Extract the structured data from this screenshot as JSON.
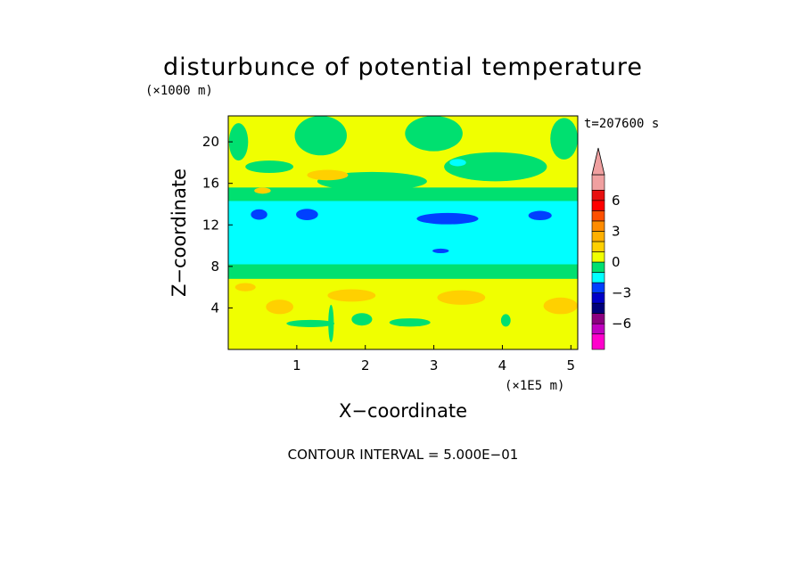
{
  "chart_data": {
    "type": "heatmap",
    "title": "disturbunce of potential temperature",
    "z_unit_label": "(×1000 m)",
    "x_unit_label": "(×1E5 m)",
    "xlabel": "X−coordinate",
    "ylabel": "Z−coordinate",
    "time_label": "t=207600 s",
    "footer": "CONTOUR INTERVAL = 5.000E−01",
    "xlim": [
      0,
      5.1
    ],
    "ylim": [
      0,
      22.5
    ],
    "x_ticks": [
      {
        "value": 1,
        "label": "1"
      },
      {
        "value": 2,
        "label": "2"
      },
      {
        "value": 3,
        "label": "3"
      },
      {
        "value": 4,
        "label": "4"
      },
      {
        "value": 5,
        "label": "5"
      }
    ],
    "y_ticks": [
      {
        "value": 4,
        "label": "4"
      },
      {
        "value": 8,
        "label": "8"
      },
      {
        "value": 12,
        "label": "12"
      },
      {
        "value": 16,
        "label": "16"
      },
      {
        "value": 20,
        "label": "20"
      }
    ],
    "colorbar": {
      "levels": [
        -8.5,
        -7,
        -6,
        -5,
        -4,
        -3,
        -2,
        -1,
        0,
        1,
        2,
        3,
        4,
        5,
        6,
        7,
        8.5
      ],
      "colors": [
        "#ff00cc",
        "#c000c0",
        "#8c0080",
        "#00007a",
        "#0000c8",
        "#0040ff",
        "#00ffff",
        "#00e070",
        "#f0ff00",
        "#ffd000",
        "#ffb000",
        "#ff8c00",
        "#ff5000",
        "#ff0000",
        "#e81010",
        "#f0a0a0"
      ],
      "tick_labels": [
        {
          "value": 6,
          "label": "6"
        },
        {
          "value": 3,
          "label": "3"
        },
        {
          "value": 0,
          "label": "0"
        },
        {
          "value": -3,
          "label": "−3"
        },
        {
          "value": -6,
          "label": "−6"
        }
      ],
      "extend": "max"
    },
    "field_regions": [
      {
        "level": 0.25,
        "color": "#f0ff00",
        "shape": "background",
        "x": [
          0,
          5.1
        ],
        "z": [
          0,
          22.5
        ]
      },
      {
        "level": -0.75,
        "color": "#00e070",
        "shape": "band",
        "x": [
          0,
          5.1
        ],
        "z": [
          6.8,
          15.6
        ]
      },
      {
        "level": -1.25,
        "color": "#00ffff",
        "shape": "band",
        "x": [
          0,
          5.1
        ],
        "z": [
          8.2,
          14.3
        ]
      },
      {
        "level": -2.25,
        "color": "#0040ff",
        "shape": "blob",
        "cx": 0.45,
        "cz": 13.0,
        "rx": 0.12,
        "rz": 0.5
      },
      {
        "level": -2.25,
        "color": "#0040ff",
        "shape": "blob",
        "cx": 1.15,
        "cz": 13.0,
        "rx": 0.16,
        "rz": 0.55
      },
      {
        "level": -2.25,
        "color": "#0040ff",
        "shape": "blob",
        "cx": 3.2,
        "cz": 12.6,
        "rx": 0.45,
        "rz": 0.55
      },
      {
        "level": -2.25,
        "color": "#0040ff",
        "shape": "blob",
        "cx": 4.55,
        "cz": 12.9,
        "rx": 0.17,
        "rz": 0.45
      },
      {
        "level": -2.25,
        "color": "#0040ff",
        "shape": "blob",
        "cx": 3.1,
        "cz": 9.5,
        "rx": 0.12,
        "rz": 0.22
      },
      {
        "level": -0.75,
        "color": "#00e070",
        "shape": "blob",
        "cx": 1.35,
        "cz": 20.6,
        "rx": 0.38,
        "rz": 1.9
      },
      {
        "level": -0.75,
        "color": "#00e070",
        "shape": "blob",
        "cx": 0.15,
        "cz": 20.0,
        "rx": 0.14,
        "rz": 1.8
      },
      {
        "level": -0.75,
        "color": "#00e070",
        "shape": "blob",
        "cx": 3.0,
        "cz": 20.8,
        "rx": 0.42,
        "rz": 1.7
      },
      {
        "level": -0.75,
        "color": "#00e070",
        "shape": "blob",
        "cx": 4.9,
        "cz": 20.3,
        "rx": 0.2,
        "rz": 2.0
      },
      {
        "level": -0.75,
        "color": "#00e070",
        "shape": "blob",
        "cx": 3.9,
        "cz": 17.6,
        "rx": 0.75,
        "rz": 1.4
      },
      {
        "level": -0.75,
        "color": "#00e070",
        "shape": "blob",
        "cx": 0.6,
        "cz": 17.6,
        "rx": 0.35,
        "rz": 0.6
      },
      {
        "level": -0.75,
        "color": "#00e070",
        "shape": "blob",
        "cx": 2.1,
        "cz": 16.2,
        "rx": 0.8,
        "rz": 0.9
      },
      {
        "level": -1.25,
        "color": "#00ffff",
        "shape": "blob",
        "cx": 3.35,
        "cz": 18.0,
        "rx": 0.12,
        "rz": 0.35
      },
      {
        "level": 1.25,
        "color": "#ffd000",
        "shape": "blob",
        "cx": 1.45,
        "cz": 16.8,
        "rx": 0.3,
        "rz": 0.5
      },
      {
        "level": 1.25,
        "color": "#ffd000",
        "shape": "blob",
        "cx": 0.5,
        "cz": 15.3,
        "rx": 0.12,
        "rz": 0.3
      },
      {
        "level": 1.25,
        "color": "#ffd000",
        "shape": "blob",
        "cx": 0.75,
        "cz": 4.1,
        "rx": 0.2,
        "rz": 0.7
      },
      {
        "level": 1.25,
        "color": "#ffd000",
        "shape": "blob",
        "cx": 1.8,
        "cz": 5.2,
        "rx": 0.35,
        "rz": 0.6
      },
      {
        "level": 1.25,
        "color": "#ffd000",
        "shape": "blob",
        "cx": 3.4,
        "cz": 5.0,
        "rx": 0.35,
        "rz": 0.7
      },
      {
        "level": 1.25,
        "color": "#ffd000",
        "shape": "blob",
        "cx": 4.85,
        "cz": 4.2,
        "rx": 0.25,
        "rz": 0.8
      },
      {
        "level": 1.25,
        "color": "#ffd000",
        "shape": "blob",
        "cx": 0.25,
        "cz": 6.0,
        "rx": 0.15,
        "rz": 0.4
      },
      {
        "level": -0.75,
        "color": "#00e070",
        "shape": "blob",
        "cx": 1.2,
        "cz": 2.5,
        "rx": 0.35,
        "rz": 0.35
      },
      {
        "level": -0.75,
        "color": "#00e070",
        "shape": "blob",
        "cx": 1.95,
        "cz": 2.9,
        "rx": 0.15,
        "rz": 0.6
      },
      {
        "level": -0.75,
        "color": "#00e070",
        "shape": "blob",
        "cx": 2.65,
        "cz": 2.6,
        "rx": 0.3,
        "rz": 0.4
      },
      {
        "level": -0.75,
        "color": "#00e070",
        "shape": "blob",
        "cx": 4.05,
        "cz": 2.8,
        "rx": 0.07,
        "rz": 0.6
      },
      {
        "level": -0.75,
        "color": "#00e070",
        "shape": "blob",
        "cx": 1.5,
        "cz": 2.5,
        "rx": 0.04,
        "rz": 1.8
      }
    ]
  }
}
